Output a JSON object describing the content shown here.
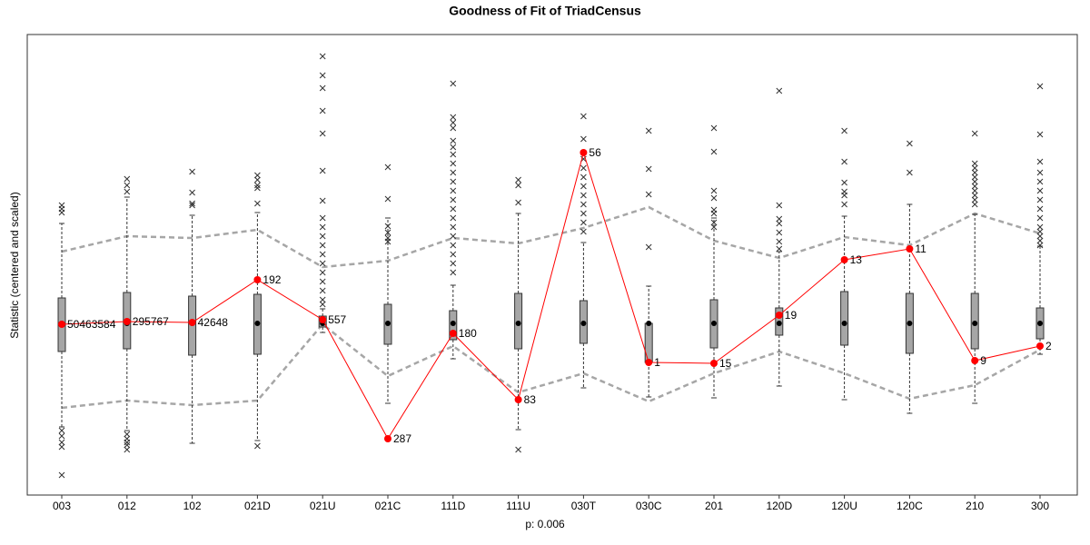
{
  "chart_data": {
    "type": "boxplot",
    "title": "Goodness of Fit of TriadCensus",
    "xlabel": "p: 0.006",
    "ylabel": "Statistic (centered and scaled)",
    "categories": [
      "003",
      "012",
      "102",
      "021D",
      "021U",
      "021C",
      "111D",
      "111U",
      "030T",
      "030C",
      "201",
      "120D",
      "120U",
      "120C",
      "210",
      "300"
    ],
    "ylim": [
      -1.89,
      3.18
    ],
    "box_color": "#a6a6a6",
    "bounds_color": "#a6a6a6",
    "observed_color": "#ff0000",
    "whisker_low": [
      -1.14,
      -1.18,
      -1.32,
      -1.29,
      -0.1,
      -0.88,
      -0.39,
      -1.17,
      -0.71,
      -0.81,
      -0.82,
      -0.69,
      -0.84,
      -0.99,
      -0.88,
      -0.34
    ],
    "q1": [
      -0.31,
      -0.28,
      -0.35,
      -0.34,
      -0.04,
      -0.23,
      -0.18,
      -0.28,
      -0.22,
      -0.43,
      -0.27,
      -0.13,
      -0.24,
      -0.33,
      -0.28,
      -0.17
    ],
    "median": [
      0,
      0,
      0,
      0,
      0,
      0,
      0,
      0,
      0,
      0,
      0,
      0,
      0,
      0,
      0,
      0
    ],
    "q3": [
      0.28,
      0.34,
      0.3,
      0.32,
      0.08,
      0.21,
      0.14,
      0.33,
      0.25,
      0,
      0.26,
      0.17,
      0.35,
      0.33,
      0.33,
      0.17
    ],
    "whisker_high": [
      1.1,
      1.39,
      1.19,
      1.22,
      0.16,
      1.16,
      0.42,
      1.21,
      0.89,
      0.41,
      1.16,
      0.79,
      1.18,
      1.31,
      1.2,
      0.85
    ],
    "outliers": [
      [
        1.3,
        1.26,
        1.22,
        -1.18,
        -1.24,
        -1.31,
        -1.36,
        -1.67
      ],
      [
        1.59,
        1.52,
        1.45,
        -1.22,
        -1.27,
        -1.31,
        -1.34,
        -1.39
      ],
      [
        1.67,
        1.44,
        1.32,
        1.3
      ],
      [
        1.63,
        1.58,
        1.52,
        1.49,
        1.32,
        -1.35
      ],
      [
        2.94,
        2.73,
        2.59,
        2.34,
        2.09,
        1.68,
        1.35,
        1.16,
        1.06,
        0.96,
        0.86,
        0.76,
        0.66,
        0.56,
        0.46,
        0.36,
        0.26,
        0.21
      ],
      [
        1.72,
        1.37,
        1.07,
        1.0,
        0.94,
        0.9
      ],
      [
        2.64,
        2.27,
        2.21,
        2.15,
        2.01,
        1.94,
        1.86,
        1.76,
        1.66,
        1.56,
        1.46,
        1.36,
        1.26,
        1.16,
        1.06,
        0.96,
        0.86,
        0.76,
        0.66,
        0.56
      ],
      [
        1.58,
        1.52,
        1.33,
        -1.39
      ],
      [
        2.28,
        2.03,
        1.81,
        1.71,
        1.61,
        1.51,
        1.41,
        1.31,
        1.21,
        1.11,
        1.01
      ],
      [
        2.12,
        1.7,
        1.42,
        0.84
      ],
      [
        2.15,
        1.89,
        1.46,
        1.38,
        1.25,
        1.21,
        1.11,
        1.06
      ],
      [
        2.56,
        1.3,
        1.15,
        1.1,
        1.0,
        0.9,
        0.82
      ],
      [
        2.12,
        1.78,
        1.55,
        1.45,
        1.41,
        1.31
      ],
      [
        1.98,
        1.66
      ],
      [
        2.09,
        1.76,
        1.71,
        1.66,
        1.61,
        1.56,
        1.51,
        1.46,
        1.41,
        1.36,
        1.31
      ],
      [
        2.61,
        2.08,
        1.78,
        1.66,
        1.56,
        1.46,
        1.36,
        1.26,
        1.16,
        1.06,
        1.01,
        0.96,
        0.91,
        0.86
      ]
    ],
    "bounds_upper": [
      0.79,
      0.96,
      0.94,
      1.03,
      0.62,
      0.69,
      0.94,
      0.88,
      1.05,
      1.28,
      0.91,
      0.72,
      0.95,
      0.86,
      1.21,
      0.99
    ],
    "bounds_lower": [
      -0.93,
      -0.85,
      -0.9,
      -0.85,
      -0.01,
      -0.58,
      -0.25,
      -0.76,
      -0.55,
      -0.86,
      -0.55,
      -0.31,
      -0.55,
      -0.83,
      -0.68,
      -0.29
    ],
    "observed": [
      -0.01,
      0.02,
      0.01,
      0.48,
      0.04,
      -1.27,
      -0.11,
      -0.84,
      1.88,
      -0.43,
      -0.44,
      0.09,
      0.7,
      0.82,
      -0.41,
      -0.25
    ],
    "observed_counts": [
      "50463584",
      "295767",
      "42648",
      "192",
      "557",
      "287",
      "180",
      "83",
      "56",
      "1",
      "15",
      "19",
      "13",
      "11",
      "9",
      "2"
    ]
  }
}
